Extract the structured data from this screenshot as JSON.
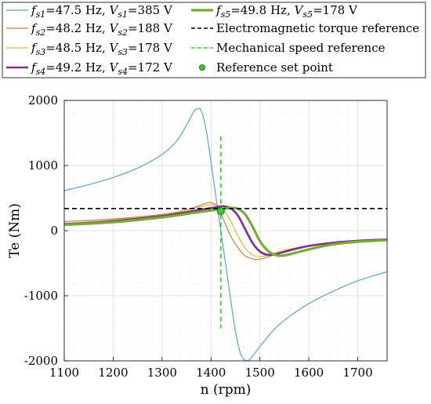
{
  "chart_data": {
    "type": "line",
    "xlabel": "n (rpm)",
    "ylabel": "Te (Nm)",
    "xlim": [
      1100,
      1760
    ],
    "ylim": [
      -2000,
      2000
    ],
    "xticks": [
      1100,
      1200,
      1300,
      1400,
      1500,
      1600,
      1700
    ],
    "yticks": [
      -2000,
      -1000,
      0,
      1000,
      2000
    ],
    "grid": true,
    "legend_position": "top (above plot), two columns",
    "series": [
      {
        "name": "fs1=47.5 Hz, Vs1=385 V",
        "label_parts": {
          "f": "f",
          "fsub": "s1",
          "fval": "=47.5 Hz, ",
          "v": "V",
          "vsub": "s1",
          "vval": "=385 V"
        },
        "color": "#5aa2cf",
        "width": 1.2,
        "points": [
          [
            1100,
            615
          ],
          [
            1150,
            705
          ],
          [
            1200,
            815
          ],
          [
            1250,
            960
          ],
          [
            1300,
            1170
          ],
          [
            1330,
            1380
          ],
          [
            1350,
            1620
          ],
          [
            1365,
            1830
          ],
          [
            1372,
            1870
          ],
          [
            1380,
            1840
          ],
          [
            1390,
            1550
          ],
          [
            1400,
            1050
          ],
          [
            1410,
            520
          ],
          [
            1420,
            0
          ],
          [
            1430,
            -520
          ],
          [
            1440,
            -1050
          ],
          [
            1450,
            -1550
          ],
          [
            1460,
            -1880
          ],
          [
            1470,
            -1990
          ],
          [
            1480,
            -1970
          ],
          [
            1500,
            -1780
          ],
          [
            1530,
            -1510
          ],
          [
            1560,
            -1320
          ],
          [
            1600,
            -1120
          ],
          [
            1650,
            -930
          ],
          [
            1700,
            -770
          ],
          [
            1760,
            -630
          ]
        ]
      },
      {
        "name": "fs2=48.2 Hz, Vs2=188 V",
        "label_parts": {
          "f": "f",
          "fsub": "s2",
          "fval": "=48.2 Hz, ",
          "v": "V",
          "vsub": "s2",
          "vval": "=188 V"
        },
        "color": "#c97b4b",
        "width": 1.2,
        "points": [
          [
            1100,
            140
          ],
          [
            1200,
            178
          ],
          [
            1300,
            250
          ],
          [
            1350,
            320
          ],
          [
            1380,
            395
          ],
          [
            1395,
            430
          ],
          [
            1405,
            420
          ],
          [
            1415,
            360
          ],
          [
            1425,
            180
          ],
          [
            1440,
            -80
          ],
          [
            1455,
            -260
          ],
          [
            1470,
            -390
          ],
          [
            1490,
            -440
          ],
          [
            1505,
            -430
          ],
          [
            1530,
            -370
          ],
          [
            1560,
            -300
          ],
          [
            1600,
            -240
          ],
          [
            1650,
            -195
          ],
          [
            1700,
            -165
          ],
          [
            1760,
            -150
          ]
        ]
      },
      {
        "name": "fs3=48.5 Hz, Vs3=178 V",
        "label_parts": {
          "f": "f",
          "fsub": "s3",
          "fval": "=48.5 Hz, ",
          "v": "V",
          "vsub": "s3",
          "vval": "=178 V"
        },
        "color": "#e8b62a",
        "width": 1.2,
        "points": [
          [
            1100,
            110
          ],
          [
            1200,
            160
          ],
          [
            1300,
            240
          ],
          [
            1360,
            330
          ],
          [
            1395,
            395
          ],
          [
            1410,
            390
          ],
          [
            1425,
            320
          ],
          [
            1440,
            150
          ],
          [
            1455,
            -80
          ],
          [
            1470,
            -270
          ],
          [
            1485,
            -375
          ],
          [
            1500,
            -400
          ],
          [
            1520,
            -370
          ],
          [
            1550,
            -300
          ],
          [
            1600,
            -230
          ],
          [
            1650,
            -185
          ],
          [
            1700,
            -160
          ],
          [
            1760,
            -140
          ]
        ]
      },
      {
        "name": "fs4=49.2 Hz, Vs4=172 V",
        "label_parts": {
          "f": "f",
          "fsub": "s4",
          "fval": "=49.2 Hz, ",
          "v": "V",
          "vsub": "s4",
          "vval": "=172 V"
        },
        "color": "#7e2f8e",
        "width": 2.6,
        "points": [
          [
            1100,
            100
          ],
          [
            1200,
            145
          ],
          [
            1300,
            225
          ],
          [
            1370,
            310
          ],
          [
            1410,
            360
          ],
          [
            1425,
            375
          ],
          [
            1440,
            345
          ],
          [
            1455,
            230
          ],
          [
            1470,
            20
          ],
          [
            1485,
            -190
          ],
          [
            1500,
            -320
          ],
          [
            1515,
            -370
          ],
          [
            1530,
            -365
          ],
          [
            1560,
            -305
          ],
          [
            1600,
            -235
          ],
          [
            1650,
            -185
          ],
          [
            1700,
            -155
          ],
          [
            1760,
            -135
          ]
        ]
      },
      {
        "name": "fs5=49.8 Hz, Vs5=178 V",
        "label_parts": {
          "f": "f",
          "fsub": "s5",
          "fval": "=49.8 Hz, ",
          "v": "V",
          "vsub": "s5",
          "vval": "=178 V"
        },
        "color": "#77ac30",
        "width": 3.2,
        "points": [
          [
            1100,
            90
          ],
          [
            1200,
            130
          ],
          [
            1300,
            205
          ],
          [
            1380,
            290
          ],
          [
            1420,
            330
          ],
          [
            1440,
            350
          ],
          [
            1455,
            335
          ],
          [
            1470,
            250
          ],
          [
            1485,
            60
          ],
          [
            1500,
            -160
          ],
          [
            1515,
            -300
          ],
          [
            1530,
            -370
          ],
          [
            1545,
            -385
          ],
          [
            1570,
            -345
          ],
          [
            1610,
            -270
          ],
          [
            1650,
            -210
          ],
          [
            1700,
            -170
          ],
          [
            1760,
            -145
          ]
        ]
      }
    ],
    "references": [
      {
        "name": "Electromagnetic torque reference",
        "kind": "hline",
        "y": 340,
        "x_range": [
          1100,
          1760
        ],
        "color": "#000000",
        "style": "dashed"
      },
      {
        "name": "Mechanical speed reference",
        "kind": "vline",
        "x": 1420,
        "y_range": [
          -1500,
          1450
        ],
        "color": "#22dd22",
        "style": "dashed"
      },
      {
        "name": "Reference set point",
        "kind": "point",
        "x": 1420,
        "y": 300,
        "color": "#33cc33"
      }
    ]
  }
}
